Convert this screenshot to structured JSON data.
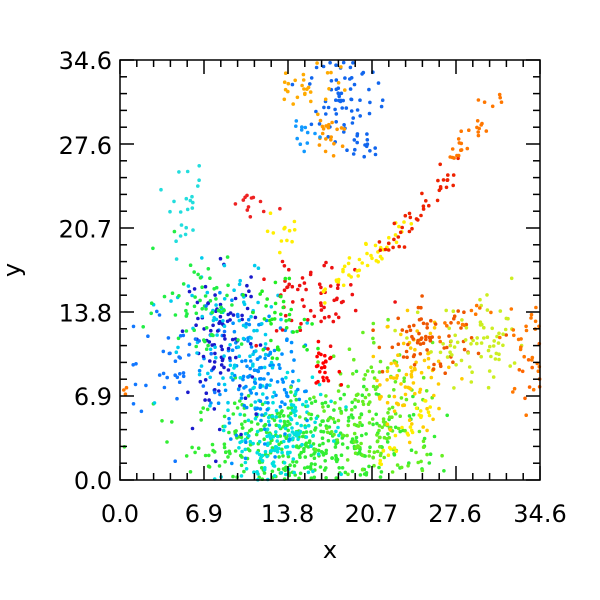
{
  "chart_data": {
    "type": "scatter",
    "title": "",
    "xlabel": "x",
    "ylabel": "y",
    "xlim": [
      0.0,
      34.6
    ],
    "ylim": [
      0.0,
      34.6
    ],
    "xticks": [
      0.0,
      6.9,
      13.8,
      20.7,
      27.6,
      34.6
    ],
    "yticks": [
      0.0,
      6.9,
      13.8,
      20.7,
      27.6,
      34.6
    ],
    "xtick_labels": [
      "0.0",
      "6.9",
      "13.8",
      "20.7",
      "27.6",
      "34.6"
    ],
    "ytick_labels": [
      "0.0",
      "6.9",
      "13.8",
      "20.7",
      "27.6",
      "34.6"
    ],
    "minor_ticks_per_major": 5,
    "grid": false,
    "legend": "none",
    "colormap": "rainbow (blue-cyan-green-yellow-red)",
    "clusters": [
      {
        "cx": 15.0,
        "cy": 3.0,
        "sx": 4.5,
        "sy": 2.0,
        "n": 380,
        "color": "#33ee33"
      },
      {
        "cx": 12.8,
        "cy": 3.5,
        "sx": 2.0,
        "sy": 2.6,
        "n": 170,
        "color": "#00e0e0"
      },
      {
        "cx": 11.2,
        "cy": 8.0,
        "sx": 2.0,
        "sy": 2.6,
        "n": 140,
        "color": "#0090ff"
      },
      {
        "cx": 8.4,
        "cy": 11.5,
        "sx": 1.5,
        "sy": 3.0,
        "n": 90,
        "color": "#1a1acc"
      },
      {
        "cx": 9.5,
        "cy": 12.0,
        "sx": 2.8,
        "sy": 3.2,
        "n": 90,
        "color": "#00ccee"
      },
      {
        "cx": 6.5,
        "cy": 14.8,
        "sx": 1.8,
        "sy": 2.0,
        "n": 55,
        "color": "#22ee44"
      },
      {
        "cx": 4.4,
        "cy": 10.0,
        "sx": 2.0,
        "sy": 2.5,
        "n": 40,
        "color": "#1177ff"
      },
      {
        "cx": 21.3,
        "cy": 5.0,
        "sx": 2.4,
        "sy": 3.0,
        "n": 160,
        "color": "#66ee22"
      },
      {
        "cx": 23.8,
        "cy": 8.5,
        "sx": 1.6,
        "sy": 2.2,
        "n": 80,
        "color": "#ffcc00"
      },
      {
        "cx": 25.4,
        "cy": 11.5,
        "sx": 1.8,
        "sy": 1.3,
        "n": 70,
        "color": "#ee5500"
      },
      {
        "cx": 29.5,
        "cy": 11.0,
        "sx": 2.3,
        "sy": 1.7,
        "n": 70,
        "color": "#ccee22"
      },
      {
        "cx": 33.6,
        "cy": 11.0,
        "sx": 1.0,
        "sy": 2.5,
        "n": 28,
        "color": "#ff7700"
      },
      {
        "cx": 15.5,
        "cy": 14.5,
        "sx": 2.0,
        "sy": 2.0,
        "n": 65,
        "color": "#ee1111"
      },
      {
        "cx": 16.8,
        "cy": 9.5,
        "sx": 0.6,
        "sy": 0.8,
        "n": 25,
        "color": "#ff0000"
      },
      {
        "cx": 13.5,
        "cy": 13.0,
        "sx": 1.5,
        "sy": 1.5,
        "n": 40,
        "color": "#22ee22"
      },
      {
        "cx": 18.5,
        "cy": 32.0,
        "sx": 1.4,
        "sy": 2.2,
        "n": 75,
        "color": "#1166ee"
      },
      {
        "cx": 15.5,
        "cy": 33.0,
        "sx": 1.4,
        "sy": 1.5,
        "n": 30,
        "color": "#ffaa00"
      },
      {
        "cx": 17.5,
        "cy": 28.5,
        "sx": 0.6,
        "sy": 0.9,
        "n": 20,
        "color": "#ff9900"
      },
      {
        "cx": 15.0,
        "cy": 28.5,
        "sx": 0.8,
        "sy": 0.8,
        "n": 12,
        "color": "#1199ff"
      },
      {
        "cx": 20.0,
        "cy": 27.5,
        "sx": 0.8,
        "sy": 0.6,
        "n": 14,
        "color": "#1166ee"
      },
      {
        "cx": 5.5,
        "cy": 22.0,
        "sx": 0.7,
        "sy": 1.6,
        "n": 22,
        "color": "#22dddd"
      },
      {
        "cx": 11.2,
        "cy": 22.5,
        "sx": 0.8,
        "sy": 0.6,
        "n": 12,
        "color": "#ee2222"
      },
      {
        "cx": 13.5,
        "cy": 20.5,
        "sx": 1.0,
        "sy": 0.6,
        "n": 12,
        "color": "#ffee00"
      },
      {
        "cx": 34.0,
        "cy": 7.5,
        "sx": 0.6,
        "sy": 1.5,
        "n": 10,
        "color": "#ff6600"
      },
      {
        "cx": 0.3,
        "cy": 7.3,
        "sx": 0.3,
        "sy": 0.3,
        "n": 4,
        "color": "#ff7700"
      }
    ],
    "lines": [
      {
        "x0": 16.5,
        "y0": 15.5,
        "x1": 24.0,
        "y1": 21.0,
        "n": 45,
        "jitter": 0.5,
        "color": "#ffee00"
      },
      {
        "x0": 22.0,
        "y0": 19.0,
        "x1": 28.0,
        "y1": 26.0,
        "n": 40,
        "jitter": 0.5,
        "color": "#ee2200"
      },
      {
        "x0": 27.0,
        "y0": 26.0,
        "x1": 31.0,
        "y1": 31.5,
        "n": 28,
        "jitter": 0.4,
        "color": "#ff7700"
      },
      {
        "x0": 21.2,
        "y0": 1.0,
        "x1": 25.5,
        "y1": 6.5,
        "n": 28,
        "jitter": 0.3,
        "color": "#ffee00"
      },
      {
        "x0": 26.0,
        "y0": 12.0,
        "x1": 30.5,
        "y1": 14.5,
        "n": 12,
        "jitter": 0.5,
        "color": "#ff7700"
      }
    ]
  }
}
